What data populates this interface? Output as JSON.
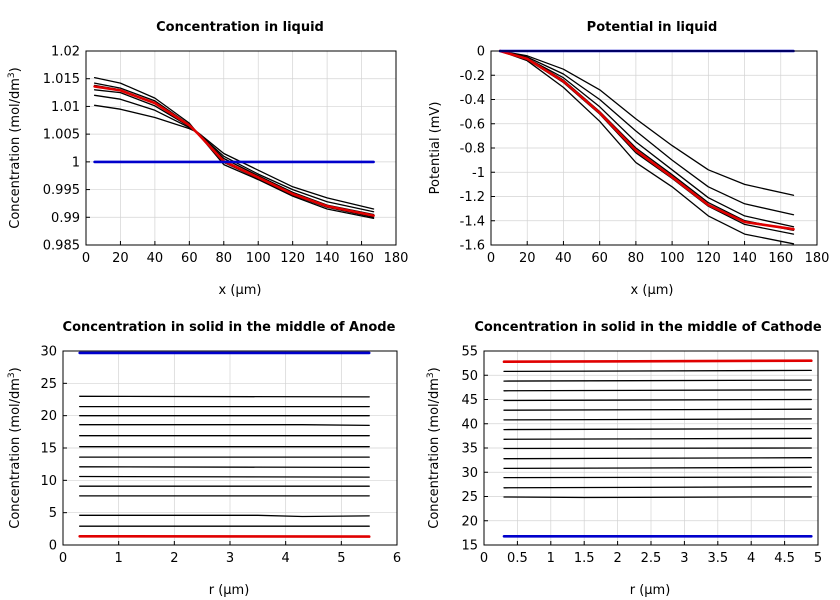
{
  "chart_data": [
    {
      "type": "line",
      "title": "Concentration in liquid",
      "xlabel": "x (µm)",
      "ylabel": "Concentration (mol/dm",
      "ylabel_sup": "3",
      "ylabel_close": ")",
      "xlim": [
        0,
        180
      ],
      "ylim": [
        0.985,
        1.02
      ],
      "xticks": [
        0,
        20,
        40,
        60,
        80,
        100,
        120,
        140,
        160,
        180
      ],
      "yticks": [
        0.985,
        0.99,
        0.995,
        1,
        1.005,
        1.01,
        1.015,
        1.02
      ],
      "ytick_labels": [
        "0.985",
        "0.99",
        "0.995",
        "1",
        "1.005",
        "1.01",
        "1.015",
        "1.02"
      ],
      "grid": true,
      "series": [
        {
          "color": "#000000",
          "x": [
            5,
            20,
            40,
            60,
            65,
            80,
            100,
            120,
            140,
            167
          ],
          "y": [
            1.0102,
            1.0095,
            1.008,
            1.006,
            1.0053,
            1.0015,
            0.9985,
            0.9955,
            0.9935,
            0.9915
          ]
        },
        {
          "color": "#000000",
          "x": [
            5,
            20,
            40,
            60,
            65,
            80,
            100,
            120,
            140,
            167
          ],
          "y": [
            1.012,
            1.0113,
            1.0093,
            1.0062,
            1.0052,
            1.001,
            0.9978,
            0.995,
            0.9928,
            0.991
          ]
        },
        {
          "color": "#000000",
          "x": [
            5,
            20,
            40,
            60,
            65,
            80,
            100,
            120,
            140,
            167
          ],
          "y": [
            1.013,
            1.0125,
            1.0101,
            1.0064,
            1.0052,
            1.0006,
            0.9975,
            0.9945,
            0.9922,
            0.9905
          ]
        },
        {
          "color": "#000000",
          "x": [
            5,
            20,
            40,
            60,
            65,
            80,
            100,
            120,
            140,
            167
          ],
          "y": [
            1.0138,
            1.013,
            1.0106,
            1.0066,
            1.0051,
            1.0002,
            0.9972,
            0.9942,
            0.992,
            0.9902
          ]
        },
        {
          "color": "#000000",
          "x": [
            5,
            20,
            40,
            60,
            65,
            80,
            100,
            120,
            140,
            167
          ],
          "y": [
            1.0142,
            1.0133,
            1.011,
            1.0067,
            1.0051,
            0.9999,
            0.997,
            0.994,
            0.9918,
            0.99
          ]
        },
        {
          "color": "#000000",
          "x": [
            5,
            20,
            40,
            60,
            65,
            80,
            100,
            120,
            140,
            167
          ],
          "y": [
            1.0152,
            1.0142,
            1.0115,
            1.007,
            1.0051,
            0.9995,
            0.9968,
            0.9938,
            0.9915,
            0.9898
          ]
        },
        {
          "color": "#e00000",
          "x": [
            5,
            20,
            40,
            60,
            65,
            80,
            100,
            120,
            140,
            167
          ],
          "y": [
            1.0136,
            1.0129,
            1.0106,
            1.0066,
            1.0051,
            1.0001,
            0.9972,
            0.9942,
            0.992,
            0.9903
          ]
        },
        {
          "color": "#0000cc",
          "x": [
            5,
            167
          ],
          "y": [
            1.0,
            1.0
          ]
        }
      ]
    },
    {
      "type": "line",
      "title": "Potential in liquid",
      "xlabel": "x (µm)",
      "ylabel": "Potential (mV)",
      "xlim": [
        0,
        180
      ],
      "ylim": [
        -1.6,
        0
      ],
      "xticks": [
        0,
        20,
        40,
        60,
        80,
        100,
        120,
        140,
        160,
        180
      ],
      "yticks": [
        0,
        -0.2,
        -0.4,
        -0.6,
        -0.8,
        -1,
        -1.2,
        -1.4,
        -1.6
      ],
      "ytick_labels": [
        "0",
        "-0.2",
        "-0.4",
        "-0.6",
        "-0.8",
        "-1",
        "-1.2",
        "-1.4",
        "-1.6"
      ],
      "grid": true,
      "series": [
        {
          "color": "#000000",
          "x": [
            5,
            20,
            40,
            60,
            80,
            100,
            120,
            140,
            167
          ],
          "y": [
            0,
            -0.04,
            -0.15,
            -0.32,
            -0.56,
            -0.78,
            -0.98,
            -1.1,
            -1.19
          ]
        },
        {
          "color": "#000000",
          "x": [
            5,
            20,
            40,
            60,
            80,
            100,
            120,
            140,
            167
          ],
          "y": [
            0,
            -0.05,
            -0.19,
            -0.4,
            -0.66,
            -0.9,
            -1.12,
            -1.26,
            -1.35
          ]
        },
        {
          "color": "#000000",
          "x": [
            5,
            20,
            40,
            60,
            80,
            100,
            120,
            140,
            167
          ],
          "y": [
            0,
            -0.06,
            -0.22,
            -0.46,
            -0.75,
            -0.98,
            -1.21,
            -1.36,
            -1.45
          ]
        },
        {
          "color": "#000000",
          "x": [
            5,
            20,
            40,
            60,
            80,
            100,
            120,
            140,
            167
          ],
          "y": [
            0,
            -0.06,
            -0.24,
            -0.5,
            -0.8,
            -1.02,
            -1.25,
            -1.4,
            -1.48
          ]
        },
        {
          "color": "#000000",
          "x": [
            5,
            20,
            40,
            60,
            80,
            100,
            120,
            140,
            167
          ],
          "y": [
            0,
            -0.07,
            -0.26,
            -0.52,
            -0.84,
            -1.05,
            -1.28,
            -1.43,
            -1.51
          ]
        },
        {
          "color": "#000000",
          "x": [
            5,
            20,
            40,
            60,
            80,
            100,
            120,
            140,
            167
          ],
          "y": [
            0,
            -0.08,
            -0.3,
            -0.58,
            -0.92,
            -1.12,
            -1.36,
            -1.51,
            -1.59
          ]
        },
        {
          "color": "#e00000",
          "x": [
            5,
            20,
            40,
            60,
            80,
            100,
            120,
            140,
            167
          ],
          "y": [
            0,
            -0.065,
            -0.25,
            -0.51,
            -0.82,
            -1.04,
            -1.27,
            -1.41,
            -1.47
          ]
        },
        {
          "color": "#0000cc",
          "x": [
            5,
            167
          ],
          "y": [
            0,
            0
          ]
        }
      ]
    },
    {
      "type": "line",
      "title": "Concentration in solid in the middle of Anode",
      "xlabel": "r (µm)",
      "ylabel": "Concentration (mol/dm",
      "ylabel_sup": "3",
      "ylabel_close": ")",
      "xlim": [
        0,
        6
      ],
      "ylim": [
        0,
        30
      ],
      "xticks": [
        0,
        1,
        2,
        3,
        4,
        5,
        6
      ],
      "yticks": [
        0,
        5,
        10,
        15,
        20,
        25,
        30
      ],
      "ytick_labels": [
        "0",
        "5",
        "10",
        "15",
        "20",
        "25",
        "30"
      ],
      "grid": true,
      "series": [
        {
          "color": "#000000",
          "x": [
            0.3,
            5.5
          ],
          "y": [
            2.9,
            2.9
          ]
        },
        {
          "color": "#000000",
          "x": [
            0.3,
            3.5,
            4.3,
            5.5
          ],
          "y": [
            4.6,
            4.6,
            4.4,
            4.5
          ]
        },
        {
          "color": "#000000",
          "x": [
            0.3,
            5.5
          ],
          "y": [
            7.6,
            7.6
          ]
        },
        {
          "color": "#000000",
          "x": [
            0.3,
            5.5
          ],
          "y": [
            9.1,
            9.1
          ]
        },
        {
          "color": "#000000",
          "x": [
            0.3,
            5.5
          ],
          "y": [
            10.6,
            10.5
          ]
        },
        {
          "color": "#000000",
          "x": [
            0.3,
            5.5
          ],
          "y": [
            12.1,
            12.0
          ]
        },
        {
          "color": "#000000",
          "x": [
            0.3,
            5.5
          ],
          "y": [
            13.6,
            13.6
          ]
        },
        {
          "color": "#000000",
          "x": [
            0.3,
            5.5
          ],
          "y": [
            15.2,
            15.2
          ]
        },
        {
          "color": "#000000",
          "x": [
            0.3,
            5.5
          ],
          "y": [
            16.9,
            16.9
          ]
        },
        {
          "color": "#000000",
          "x": [
            0.3,
            4.3,
            5.5
          ],
          "y": [
            18.6,
            18.6,
            18.5
          ]
        },
        {
          "color": "#000000",
          "x": [
            0.3,
            5.5
          ],
          "y": [
            20.0,
            20.0
          ]
        },
        {
          "color": "#000000",
          "x": [
            0.3,
            5.5
          ],
          "y": [
            21.4,
            21.4
          ]
        },
        {
          "color": "#000000",
          "x": [
            0.3,
            5.5
          ],
          "y": [
            23.0,
            22.9
          ]
        },
        {
          "color": "#e00000",
          "x": [
            0.3,
            5.5
          ],
          "y": [
            1.35,
            1.3
          ]
        },
        {
          "color": "#0000cc",
          "x": [
            0.3,
            5.5
          ],
          "y": [
            29.7,
            29.7
          ]
        }
      ]
    },
    {
      "type": "line",
      "title": "Concentration in solid in the middle of Cathode",
      "xlabel": "r (µm)",
      "ylabel": "Concentration (mol/dm",
      "ylabel_sup": "3",
      "ylabel_close": ")",
      "xlim": [
        0,
        5
      ],
      "ylim": [
        15,
        55
      ],
      "xticks": [
        0,
        0.5,
        1,
        1.5,
        2,
        2.5,
        3,
        3.5,
        4,
        4.5,
        5
      ],
      "yticks": [
        15,
        20,
        25,
        30,
        35,
        40,
        45,
        50,
        55
      ],
      "ytick_labels": [
        "15",
        "20",
        "25",
        "30",
        "35",
        "40",
        "45",
        "50",
        "55"
      ],
      "grid": true,
      "series": [
        {
          "color": "#000000",
          "x": [
            0.3,
            1.5,
            4.0,
            4.9
          ],
          "y": [
            24.9,
            24.8,
            24.9,
            24.9
          ]
        },
        {
          "color": "#000000",
          "x": [
            0.3,
            4.9
          ],
          "y": [
            26.8,
            27.0
          ]
        },
        {
          "color": "#000000",
          "x": [
            0.3,
            4.9
          ],
          "y": [
            28.9,
            29.0
          ]
        },
        {
          "color": "#000000",
          "x": [
            0.3,
            4.9
          ],
          "y": [
            30.8,
            31.0
          ]
        },
        {
          "color": "#000000",
          "x": [
            0.3,
            4.9
          ],
          "y": [
            32.8,
            33.0
          ]
        },
        {
          "color": "#000000",
          "x": [
            0.3,
            4.9
          ],
          "y": [
            34.9,
            35.0
          ]
        },
        {
          "color": "#000000",
          "x": [
            0.3,
            4.9
          ],
          "y": [
            36.8,
            37.0
          ]
        },
        {
          "color": "#000000",
          "x": [
            0.3,
            4.9
          ],
          "y": [
            38.8,
            39.0
          ]
        },
        {
          "color": "#000000",
          "x": [
            0.3,
            4.9
          ],
          "y": [
            40.8,
            41.0
          ]
        },
        {
          "color": "#000000",
          "x": [
            0.3,
            4.9
          ],
          "y": [
            42.8,
            43.0
          ]
        },
        {
          "color": "#000000",
          "x": [
            0.3,
            4.9
          ],
          "y": [
            44.8,
            45.0
          ]
        },
        {
          "color": "#000000",
          "x": [
            0.3,
            4.9
          ],
          "y": [
            46.8,
            47.0
          ]
        },
        {
          "color": "#000000",
          "x": [
            0.3,
            4.9
          ],
          "y": [
            48.8,
            49.0
          ]
        },
        {
          "color": "#000000",
          "x": [
            0.3,
            4.9
          ],
          "y": [
            50.8,
            51.0
          ]
        },
        {
          "color": "#e00000",
          "x": [
            0.3,
            4.9
          ],
          "y": [
            52.8,
            53.0
          ]
        },
        {
          "color": "#0000cc",
          "x": [
            0.3,
            4.9
          ],
          "y": [
            16.8,
            16.8
          ]
        }
      ]
    }
  ]
}
